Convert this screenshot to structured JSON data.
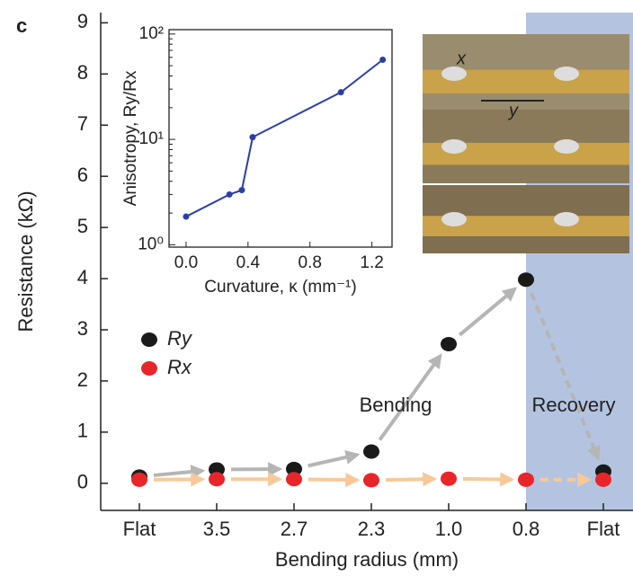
{
  "chart_data": [
    {
      "type": "scatter",
      "panel_label": "c",
      "y_label": "Resistance (kΩ)",
      "x_label": "Bending radius (mm)",
      "categories": [
        "Flat",
        "3.5",
        "2.7",
        "2.3",
        "1.0",
        "0.8",
        "Flat"
      ],
      "series": [
        {
          "name": "Ry",
          "color": "#1a1a1a",
          "values": [
            0.13,
            0.27,
            0.28,
            0.62,
            2.72,
            3.98,
            0.23
          ]
        },
        {
          "name": "Rx",
          "color": "#e8262a",
          "values": [
            0.07,
            0.08,
            0.08,
            0.06,
            0.09,
            0.07,
            0.07
          ]
        }
      ],
      "ylim": [
        -0.53,
        9.2
      ],
      "yticks": [
        0,
        1,
        2,
        3,
        4,
        5,
        6,
        7,
        8,
        9
      ],
      "annotations": [
        "Bending",
        "Recovery"
      ],
      "photo_labels": [
        "x",
        "y"
      ]
    },
    {
      "type": "line",
      "y_label": "Anisotropy, Ry/Rx",
      "x_label": "Curvature, κ (mm⁻¹)",
      "x": [
        0,
        0.28,
        0.36,
        0.43,
        1.0,
        1.27
      ],
      "log_y": true,
      "series": [
        {
          "name": null,
          "color": "#2b3fa8",
          "values": [
            1.85,
            3.0,
            3.3,
            10.5,
            28,
            57
          ]
        }
      ],
      "xlim": [
        -0.11,
        1.33
      ],
      "xticks": [
        {
          "value": 0,
          "label": "0.0"
        },
        0.4,
        0.8,
        1.2
      ],
      "ylim": [
        0.95,
        110
      ],
      "yticks": [
        {
          "value": 1,
          "label": "10⁰"
        },
        {
          "value": 10,
          "label": "10¹"
        },
        {
          "value": 100,
          "label": "10²"
        }
      ]
    }
  ]
}
